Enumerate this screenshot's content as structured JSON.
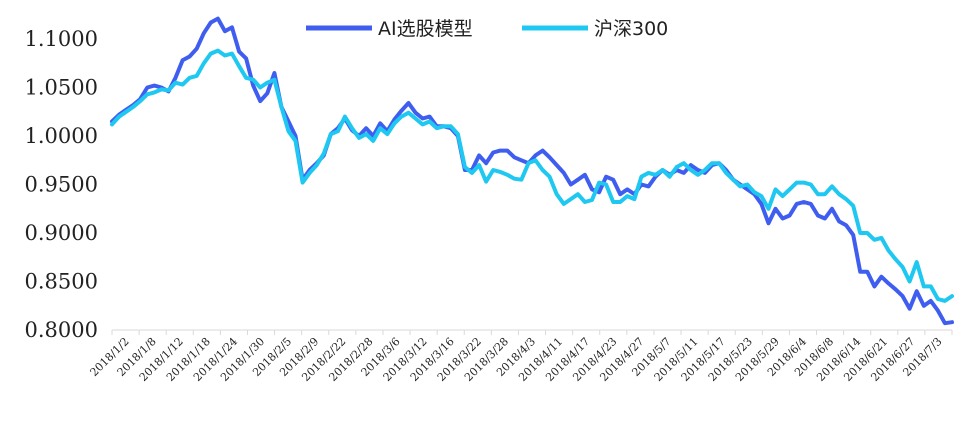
{
  "chart_data": {
    "type": "line",
    "title": "",
    "xlabel": "",
    "ylabel": "",
    "ylim": [
      0.8,
      1.1
    ],
    "yticks": [
      "1.1000",
      "1.0500",
      "1.0000",
      "0.9500",
      "0.9000",
      "0.8500",
      "0.8000"
    ],
    "xtick_labels": [
      "2018/1/2",
      "2018/1/8",
      "2018/1/12",
      "2018/1/18",
      "2018/1/24",
      "2018/1/30",
      "2018/2/5",
      "2018/2/9",
      "2018/2/22",
      "2018/2/28",
      "2018/3/6",
      "2018/3/12",
      "2018/3/16",
      "2018/3/22",
      "2018/3/28",
      "2018/4/3",
      "2018/4/11",
      "2018/4/17",
      "2018/4/23",
      "2018/4/27",
      "2018/5/7",
      "2018/5/11",
      "2018/5/17",
      "2018/5/23",
      "2018/5/29",
      "2018/6/4",
      "2018/6/8",
      "2018/6/14",
      "2018/6/21",
      "2018/6/27",
      "2018/7/3"
    ],
    "legend_position": "top",
    "grid": false,
    "series": [
      {
        "name": "AI选股模型",
        "color": "#3f5ef0",
        "values": [
          1.015,
          1.022,
          1.027,
          1.032,
          1.038,
          1.05,
          1.052,
          1.05,
          1.046,
          1.06,
          1.078,
          1.082,
          1.09,
          1.106,
          1.117,
          1.121,
          1.108,
          1.112,
          1.087,
          1.08,
          1.052,
          1.036,
          1.044,
          1.065,
          1.03,
          1.015,
          1.0,
          0.955,
          0.965,
          0.972,
          0.98,
          1.002,
          1.008,
          1.018,
          1.006,
          1.0,
          1.008,
          1.0,
          1.013,
          1.005,
          1.017,
          1.026,
          1.034,
          1.024,
          1.018,
          1.02,
          1.01,
          1.01,
          1.008,
          1.0,
          0.965,
          0.965,
          0.98,
          0.972,
          0.983,
          0.985,
          0.985,
          0.978,
          0.975,
          0.972,
          0.98,
          0.985,
          0.978,
          0.97,
          0.962,
          0.95,
          0.955,
          0.96,
          0.945,
          0.942,
          0.958,
          0.955,
          0.94,
          0.945,
          0.94,
          0.95,
          0.948,
          0.958,
          0.965,
          0.96,
          0.965,
          0.962,
          0.97,
          0.965,
          0.962,
          0.97,
          0.972,
          0.965,
          0.955,
          0.95,
          0.945,
          0.94,
          0.93,
          0.91,
          0.925,
          0.915,
          0.918,
          0.93,
          0.932,
          0.93,
          0.918,
          0.915,
          0.925,
          0.912,
          0.908,
          0.898,
          0.86,
          0.86,
          0.845,
          0.855,
          0.848,
          0.842,
          0.835,
          0.822,
          0.84,
          0.825,
          0.83,
          0.82,
          0.807,
          0.808
        ]
      },
      {
        "name": "沪深300",
        "color": "#1ec8f0",
        "values": [
          1.012,
          1.02,
          1.025,
          1.03,
          1.036,
          1.043,
          1.045,
          1.048,
          1.047,
          1.055,
          1.053,
          1.06,
          1.062,
          1.075,
          1.085,
          1.088,
          1.083,
          1.085,
          1.072,
          1.06,
          1.058,
          1.05,
          1.055,
          1.058,
          1.03,
          1.005,
          0.995,
          0.952,
          0.962,
          0.97,
          0.982,
          1.002,
          1.005,
          1.02,
          1.008,
          0.998,
          1.002,
          0.995,
          1.008,
          1.002,
          1.013,
          1.02,
          1.024,
          1.018,
          1.012,
          1.015,
          1.008,
          1.01,
          1.01,
          1.002,
          0.968,
          0.962,
          0.97,
          0.953,
          0.965,
          0.963,
          0.96,
          0.956,
          0.955,
          0.972,
          0.975,
          0.965,
          0.958,
          0.94,
          0.93,
          0.935,
          0.94,
          0.932,
          0.934,
          0.952,
          0.95,
          0.932,
          0.932,
          0.938,
          0.935,
          0.958,
          0.962,
          0.96,
          0.965,
          0.958,
          0.968,
          0.972,
          0.965,
          0.96,
          0.965,
          0.972,
          0.972,
          0.962,
          0.955,
          0.948,
          0.95,
          0.942,
          0.938,
          0.925,
          0.945,
          0.938,
          0.945,
          0.952,
          0.952,
          0.95,
          0.94,
          0.94,
          0.948,
          0.94,
          0.935,
          0.928,
          0.9,
          0.9,
          0.893,
          0.895,
          0.882,
          0.873,
          0.865,
          0.85,
          0.87,
          0.845,
          0.845,
          0.832,
          0.83,
          0.835
        ]
      }
    ]
  }
}
